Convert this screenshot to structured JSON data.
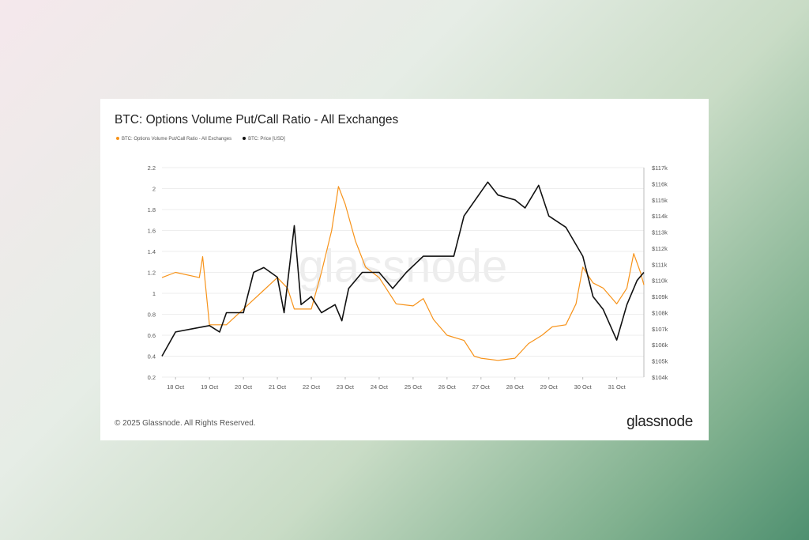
{
  "chart_data": {
    "type": "line",
    "title": "BTC: Options Volume Put/Call Ratio - All Exchanges",
    "x_tick_labels": [
      "18 Oct",
      "19 Oct",
      "20 Oct",
      "21 Oct",
      "22 Oct",
      "23 Oct",
      "24 Oct",
      "25 Oct",
      "26 Oct",
      "27 Oct",
      "28 Oct",
      "29 Oct",
      "30 Oct",
      "31 Oct"
    ],
    "xlim_days_of_october": [
      17.6,
      31.8
    ],
    "y_left": {
      "ticks": [
        "2.2",
        "2",
        "1.8",
        "1.6",
        "1.4",
        "1.2",
        "1",
        "0.8",
        "0.6",
        "0.4",
        "0.2"
      ],
      "range": [
        0.2,
        2.2
      ]
    },
    "y_right": {
      "ticks": [
        "$117k",
        "$116k",
        "$115k",
        "$114k",
        "$113k",
        "$112k",
        "$111k",
        "$110k",
        "$109k",
        "$108k",
        "$107k",
        "$106k",
        "$105k",
        "$104k"
      ],
      "range": [
        104,
        117
      ],
      "unit": "USD thousands"
    },
    "grid": true,
    "legend_placement": "top-left",
    "series": [
      {
        "name": "BTC: Options Volume Put/Call Ratio - All Exchanges",
        "axis": "left",
        "color": "#f7931a",
        "x": [
          17.6,
          18,
          18.7,
          18.8,
          19,
          19.5,
          20,
          20.5,
          21,
          21.3,
          21.5,
          22,
          22.3,
          22.6,
          22.8,
          23,
          23.3,
          23.6,
          24,
          24.5,
          25,
          25.3,
          25.6,
          26,
          26.5,
          26.8,
          27,
          27.5,
          28,
          28.4,
          28.8,
          29.1,
          29.5,
          29.8,
          30,
          30.3,
          30.6,
          31,
          31.3,
          31.5,
          31.7,
          31.8
        ],
        "y": [
          1.15,
          1.2,
          1.15,
          1.35,
          0.7,
          0.7,
          0.85,
          1.0,
          1.15,
          1.05,
          0.85,
          0.85,
          1.2,
          1.6,
          2.02,
          1.85,
          1.5,
          1.25,
          1.15,
          0.9,
          0.88,
          0.95,
          0.75,
          0.6,
          0.55,
          0.4,
          0.38,
          0.36,
          0.38,
          0.52,
          0.6,
          0.68,
          0.7,
          0.9,
          1.25,
          1.1,
          1.05,
          0.9,
          1.05,
          1.38,
          1.2,
          1.08
        ]
      },
      {
        "name": "BTC: Price [USD]",
        "axis": "right",
        "color": "#111111",
        "x": [
          17.6,
          18,
          18.5,
          19,
          19.3,
          19.5,
          20,
          20.3,
          20.6,
          21,
          21.2,
          21.5,
          21.7,
          22,
          22.3,
          22.7,
          22.9,
          23.1,
          23.5,
          24,
          24.4,
          24.8,
          25.3,
          25.8,
          26.2,
          26.5,
          27,
          27.2,
          27.5,
          28,
          28.3,
          28.7,
          29,
          29.5,
          30,
          30.3,
          30.6,
          31,
          31.3,
          31.6,
          31.8
        ],
        "y": [
          105.3,
          106.8,
          107.0,
          107.2,
          106.8,
          108,
          108,
          110.5,
          110.8,
          110.2,
          108.0,
          113.4,
          108.5,
          109,
          108.0,
          108.5,
          107.5,
          109.5,
          110.5,
          110.5,
          109.5,
          110.5,
          111.5,
          111.5,
          111.5,
          114,
          115.5,
          116.1,
          115.3,
          115,
          114.5,
          115.9,
          114,
          113.3,
          111.5,
          109,
          108.2,
          106.3,
          108.5,
          110,
          110.5
        ]
      }
    ]
  },
  "footer": {
    "copyright": "© 2025 Glassnode. All Rights Reserved.",
    "logo_text": "glassnode"
  },
  "watermark": "glassnode"
}
